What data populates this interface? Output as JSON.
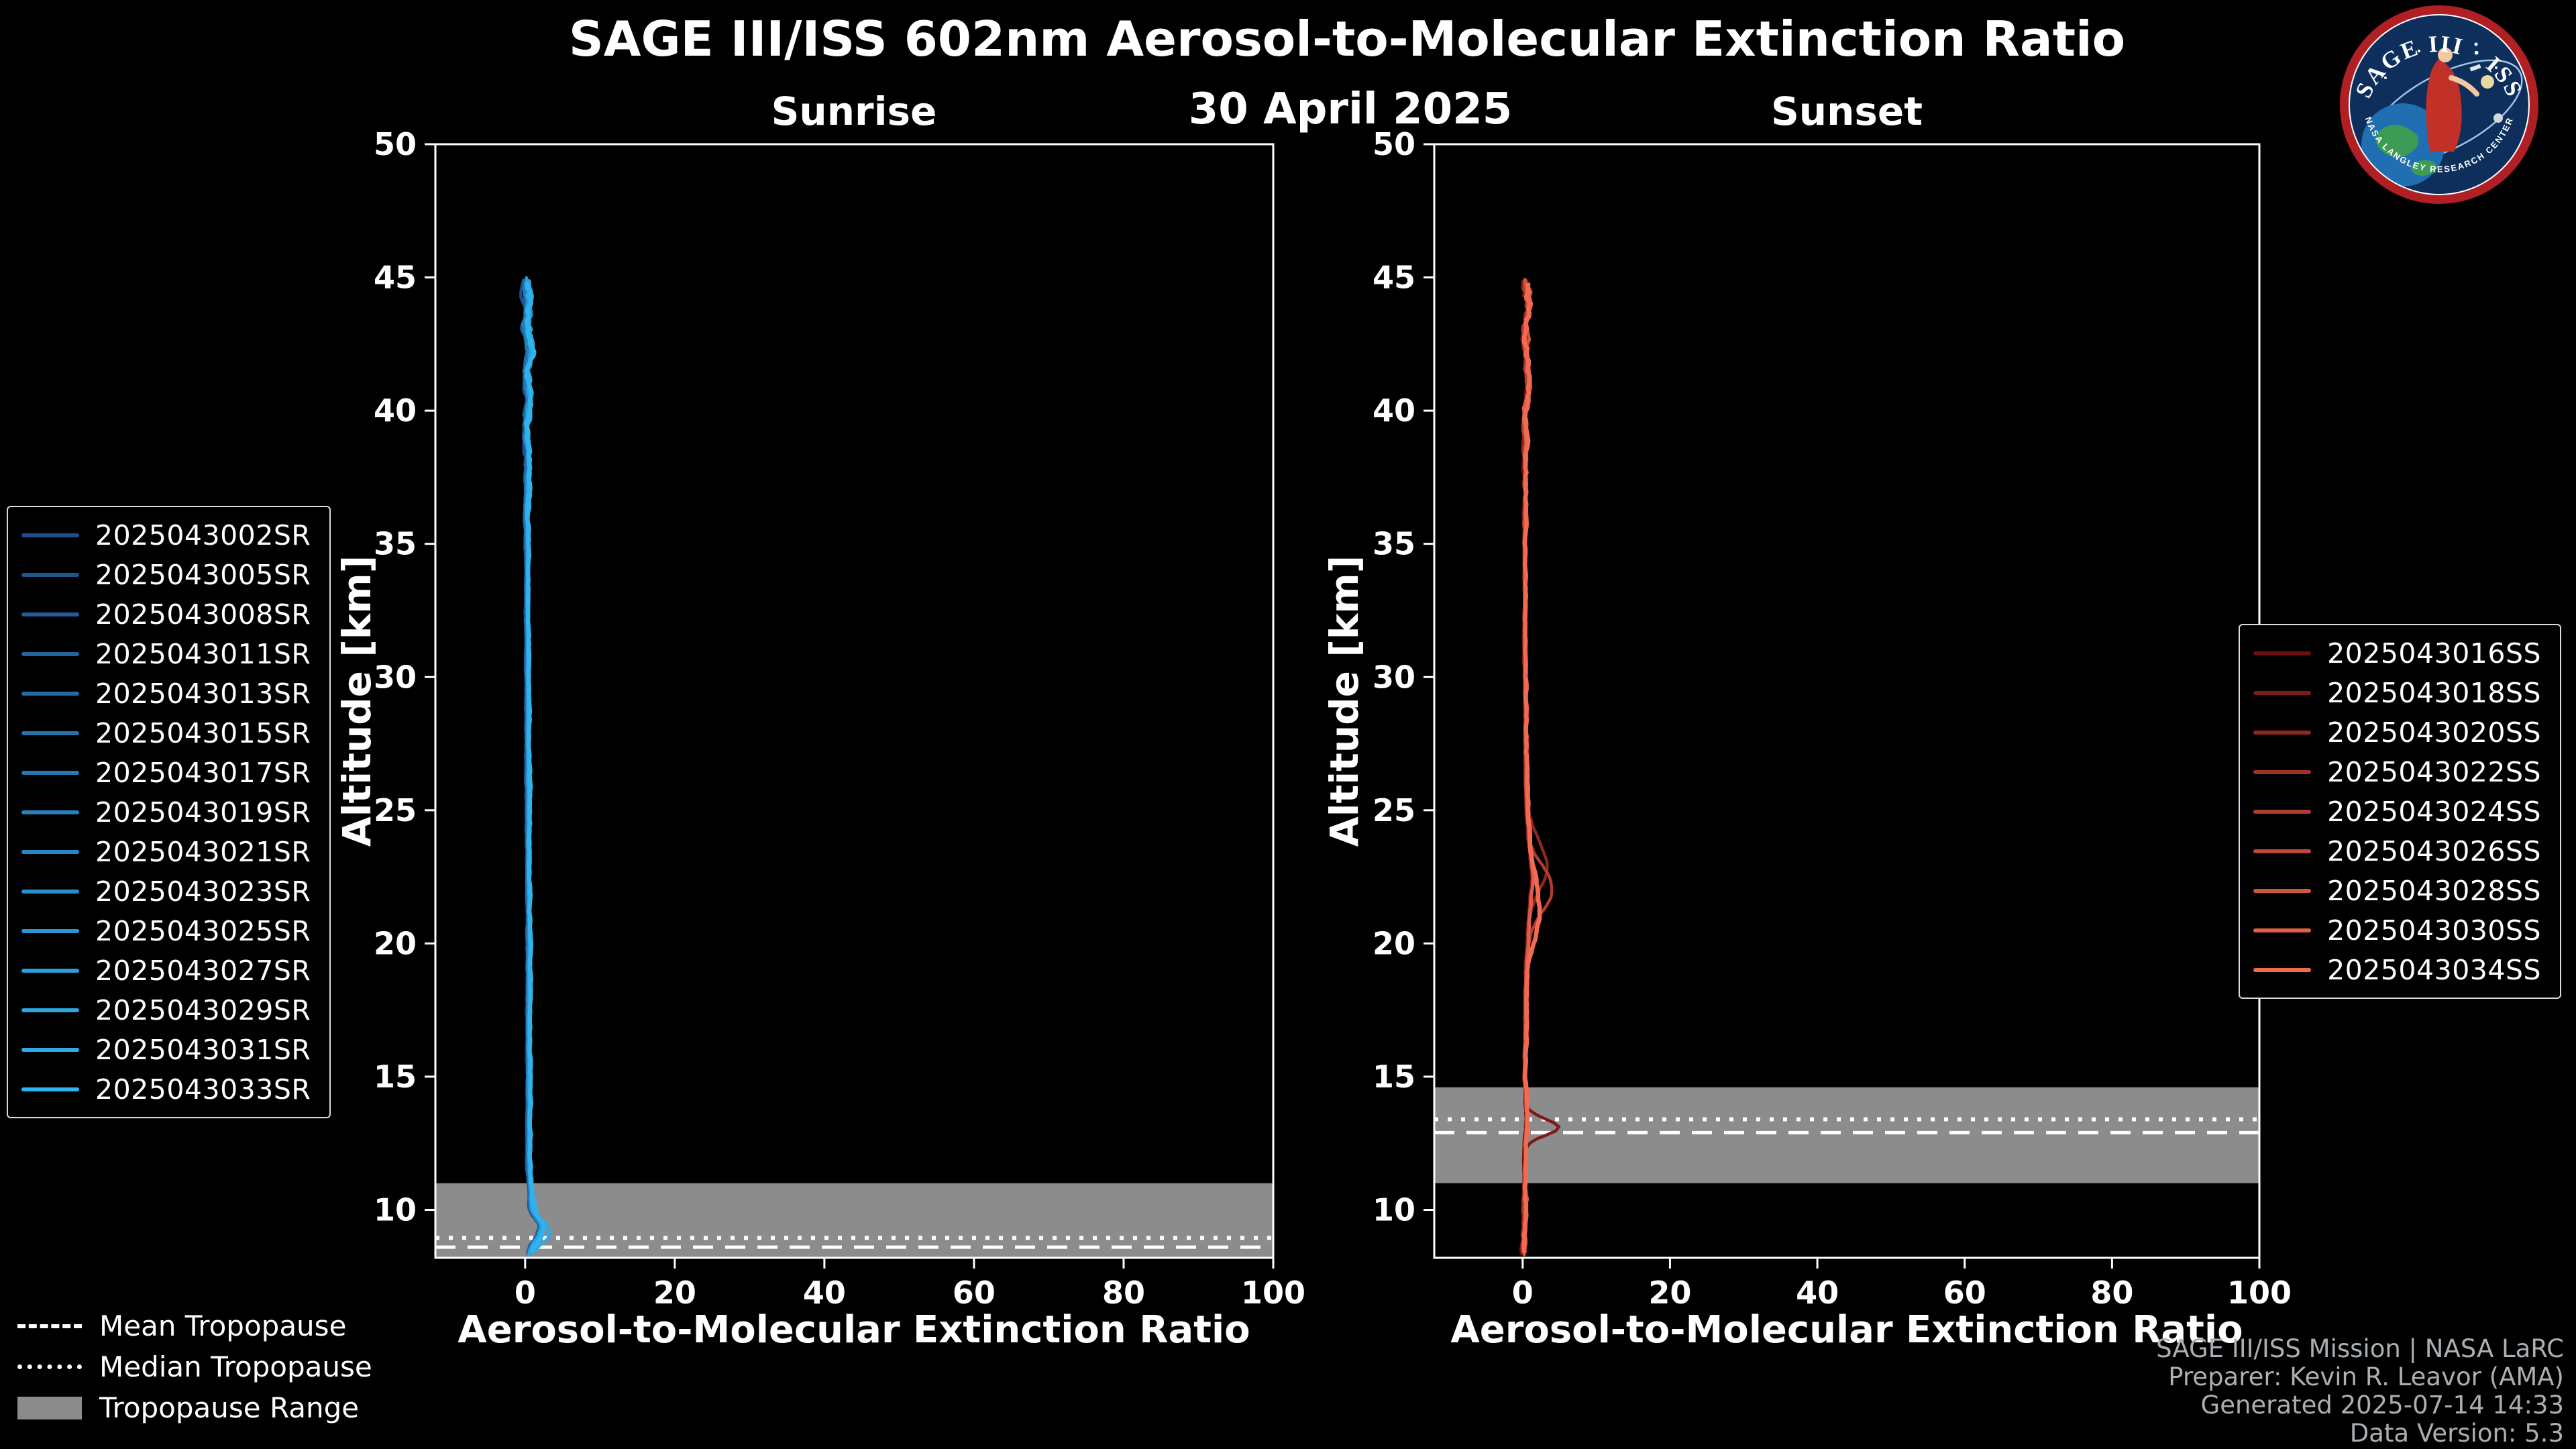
{
  "header": {
    "title": "SAGE III/ISS 602nm Aerosol-to-Molecular Extinction Ratio",
    "date": "30 April 2025"
  },
  "panels": {
    "sunrise_title": "Sunrise",
    "sunset_title": "Sunset"
  },
  "logo": {
    "title": "SAGE III · ISS",
    "ring_text": "NASA LANGLEY RESEARCH CENTER"
  },
  "tropopause_legend": {
    "mean": "Mean Tropopause",
    "median": "Median Tropopause",
    "range": "Tropopause Range"
  },
  "credits": {
    "line1": "SAGE III/ISS Mission | NASA LaRC",
    "line2": "Preparer: Kevin R. Leavor (AMA)",
    "line3": "Generated 2025-07-14 14:33",
    "line4": "Data Version: 5.3"
  },
  "colors": {
    "background": "#000000",
    "axis": "#ffffff",
    "tropopause_band": "#8c8c8c",
    "tropopause_line": "#ffffff",
    "credits_text": "#a9afb3"
  },
  "chart_data": [
    {
      "type": "line",
      "title": "Sunrise",
      "xlabel": "Aerosol-to-Molecular Extinction Ratio",
      "ylabel": "Altitude [km]",
      "xlim": [
        -12,
        100
      ],
      "ylim": [
        8.2,
        50
      ],
      "x_ticks": [
        0,
        20,
        40,
        60,
        80,
        100
      ],
      "y_ticks": [
        10,
        15,
        20,
        25,
        30,
        35,
        40,
        45,
        50
      ],
      "top_altitude": 45.0,
      "grid": false,
      "legend_position": "left-outside",
      "color_start": "#1d4e89",
      "color_end": "#2fb3ef",
      "tropopause": {
        "range": [
          8.2,
          11.0
        ],
        "mean": 8.6,
        "median": 8.95
      },
      "profile_anchors": [
        [
          45,
          0.2
        ],
        [
          44,
          0.5
        ],
        [
          43.2,
          0.1
        ],
        [
          42.2,
          0.8
        ],
        [
          41.5,
          0.2
        ],
        [
          40.5,
          0.6
        ],
        [
          39.5,
          0.2
        ],
        [
          38,
          0.4
        ],
        [
          36,
          0.2
        ],
        [
          34,
          0.3
        ],
        [
          31,
          0.3
        ],
        [
          28,
          0.35
        ],
        [
          25,
          0.4
        ],
        [
          22,
          0.45
        ],
        [
          20,
          0.5
        ],
        [
          17,
          0.45
        ],
        [
          14,
          0.5
        ],
        [
          11.5,
          0.5
        ],
        [
          10,
          0.9
        ],
        [
          9.4,
          2.3
        ],
        [
          9.0,
          1.8
        ],
        [
          8.6,
          0.8
        ],
        [
          8.2,
          0.3
        ]
      ],
      "series": [
        {
          "label": "2025043002SR"
        },
        {
          "label": "2025043005SR"
        },
        {
          "label": "2025043008SR"
        },
        {
          "label": "2025043011SR"
        },
        {
          "label": "2025043013SR"
        },
        {
          "label": "2025043015SR"
        },
        {
          "label": "2025043017SR"
        },
        {
          "label": "2025043019SR"
        },
        {
          "label": "2025043021SR"
        },
        {
          "label": "2025043023SR"
        },
        {
          "label": "2025043025SR"
        },
        {
          "label": "2025043027SR"
        },
        {
          "label": "2025043029SR"
        },
        {
          "label": "2025043031SR",
          "bump": {
            "alt": 9.0,
            "amp": 1.0,
            "width": 0.4
          }
        },
        {
          "label": "2025043033SR"
        }
      ]
    },
    {
      "type": "line",
      "title": "Sunset",
      "xlabel": "Aerosol-to-Molecular Extinction Ratio",
      "ylabel": "Altitude [km]",
      "xlim": [
        -12,
        100
      ],
      "ylim": [
        8.2,
        50
      ],
      "x_ticks": [
        0,
        20,
        40,
        60,
        80,
        100
      ],
      "y_ticks": [
        10,
        15,
        20,
        25,
        30,
        35,
        40,
        45,
        50
      ],
      "top_altitude": 44.95,
      "grid": false,
      "legend_position": "right-outside",
      "color_start": "#6b100f",
      "color_end": "#f26a50",
      "tropopause": {
        "range": [
          11.0,
          14.6
        ],
        "mean": 12.9,
        "median": 13.4
      },
      "profile_anchors": [
        [
          45,
          0.3
        ],
        [
          44,
          0.7
        ],
        [
          43,
          0.2
        ],
        [
          42,
          0.6
        ],
        [
          41,
          0.9
        ],
        [
          40,
          0.3
        ],
        [
          38,
          0.4
        ],
        [
          35,
          0.3
        ],
        [
          32,
          0.3
        ],
        [
          29,
          0.4
        ],
        [
          26,
          0.5
        ],
        [
          24,
          0.8
        ],
        [
          22.5,
          1.4
        ],
        [
          21.5,
          1.1
        ],
        [
          20.5,
          0.8
        ],
        [
          19,
          0.5
        ],
        [
          17,
          0.4
        ],
        [
          15,
          0.3
        ],
        [
          13.5,
          0.6
        ],
        [
          12.5,
          0.4
        ],
        [
          11,
          0.3
        ],
        [
          10,
          0.3
        ],
        [
          9,
          0.2
        ],
        [
          8.3,
          0.1
        ]
      ],
      "series": [
        {
          "label": "2025043016SS"
        },
        {
          "label": "2025043018SS",
          "bump": {
            "alt": 13.1,
            "amp": 4.5,
            "width": 0.3
          }
        },
        {
          "label": "2025043020SS",
          "bump": {
            "alt": 23.0,
            "amp": 2.2,
            "width": 0.9
          }
        },
        {
          "label": "2025043022SS"
        },
        {
          "label": "2025043024SS",
          "bump": {
            "alt": 22.0,
            "amp": 2.8,
            "width": 0.8
          }
        },
        {
          "label": "2025043026SS"
        },
        {
          "label": "2025043028SS"
        },
        {
          "label": "2025043030SS"
        },
        {
          "label": "2025043034SS",
          "bump": {
            "alt": 21.0,
            "amp": 1.2,
            "width": 0.9
          }
        }
      ]
    }
  ]
}
